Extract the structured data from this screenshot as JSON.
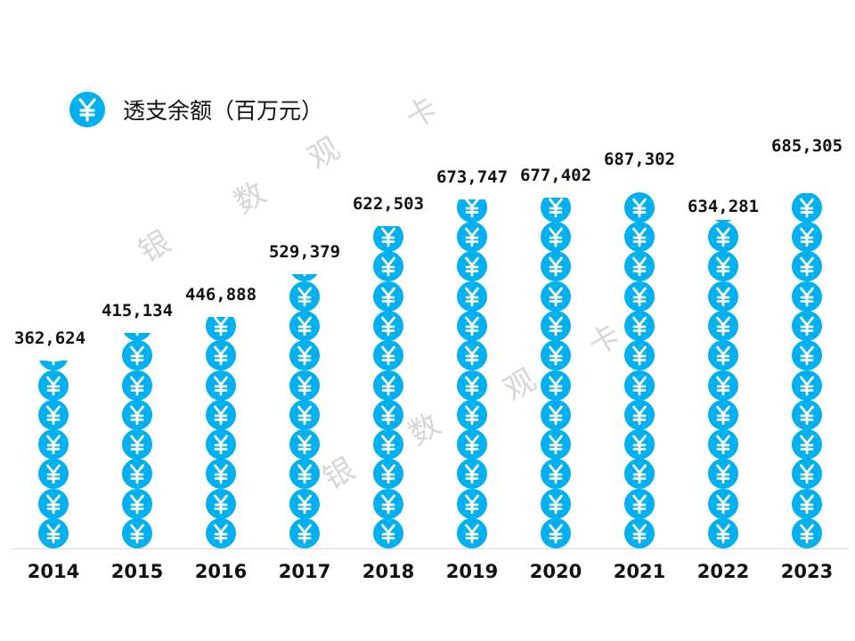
{
  "legend": {
    "label": "透支余额（百万元）",
    "icon": "yuan-coin-icon"
  },
  "colors": {
    "coin": "#00B0F0",
    "coin_glyph": "#FFFFFF",
    "axis": "#D9D9D9",
    "watermark": "#D6D6D6"
  },
  "watermarks": [
    "银",
    "数",
    "观",
    "卡",
    "银",
    "数",
    "观",
    "卡"
  ],
  "chart_data": {
    "type": "bar",
    "style": "pictograph (stacked yuan coins)",
    "title": "",
    "legend": [
      "透支余额（百万元）"
    ],
    "categories": [
      "2014",
      "2015",
      "2016",
      "2017",
      "2018",
      "2019",
      "2020",
      "2021",
      "2022",
      "2023"
    ],
    "series": [
      {
        "name": "透支余额（百万元）",
        "values": [
          362624,
          415134,
          446888,
          529379,
          622503,
          673747,
          677402,
          687302,
          634281,
          685305
        ]
      }
    ],
    "labels": [
      "362,624",
      "415,134",
      "446,888",
      "529,379",
      "622,503",
      "673,747",
      "677,402",
      "687,302",
      "634,281",
      "685,305"
    ],
    "xlabel": "",
    "ylabel": "",
    "grid": false,
    "legend_position": "top-left"
  }
}
